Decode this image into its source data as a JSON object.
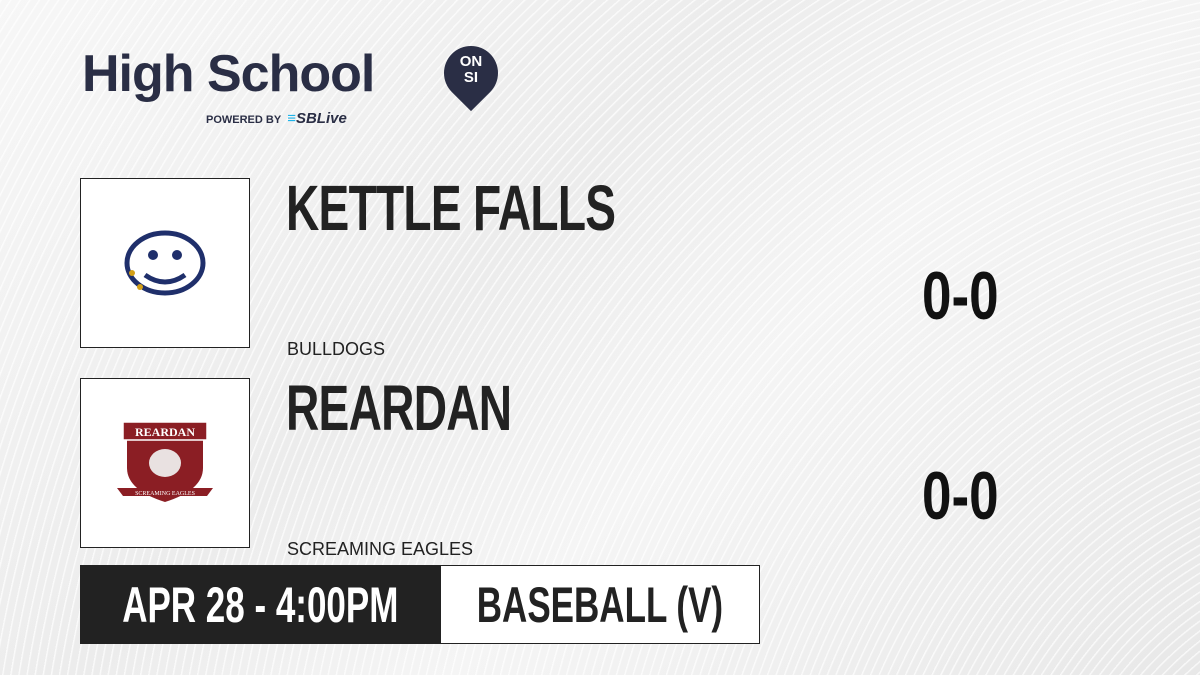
{
  "brand": {
    "title": "High School",
    "badge_top": "ON",
    "badge_bottom": "SI",
    "powered_by": "POWERED BY",
    "partner": "SBLive"
  },
  "teams": [
    {
      "name": "KETTLE FALLS",
      "mascot": "BULLDOGS",
      "score": "0-0",
      "logo_icon": "bulldog-logo-icon",
      "color": "#1f2f6b"
    },
    {
      "name": "REARDAN",
      "mascot": "SCREAMING EAGLES",
      "score": "0-0",
      "logo_icon": "screaming-eagles-logo-icon",
      "logo_text": "REARDAN",
      "logo_subtext": "SCREAMING EAGLES",
      "color": "#8b1e24"
    }
  ],
  "game": {
    "datetime": "APR 28 - 4:00PM",
    "sport": "BASEBALL (V)"
  }
}
